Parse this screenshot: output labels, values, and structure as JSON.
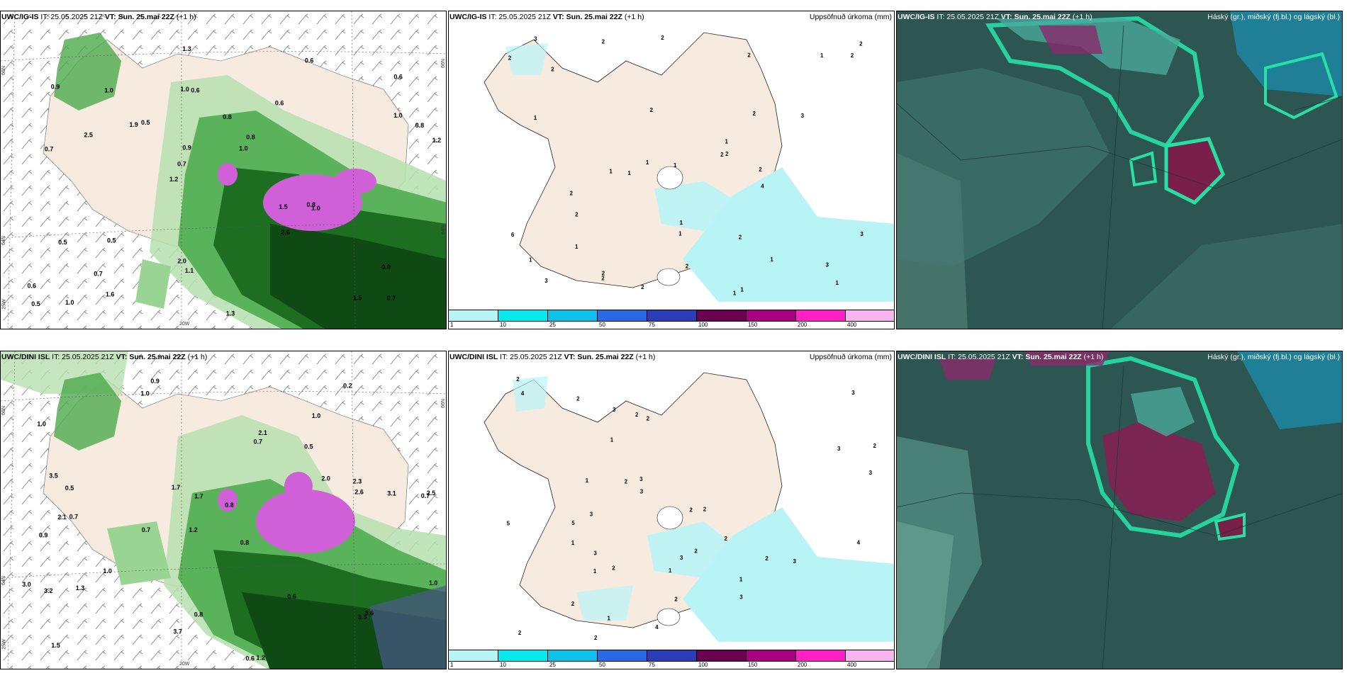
{
  "rows": [
    {
      "wind_title": {
        "model": "UWC/IG-IS",
        "it": "IT: 25.05.2025 21Z",
        "vt_label": "VT:",
        "vt": "Sun. 25.mai 22Z",
        "lead": "(+1 h)"
      },
      "precip_title": {
        "model": "UWC/IG-IS",
        "it": "IT: 25.05.2025 21Z",
        "vt_label": "VT:",
        "vt": "Sun. 25.mai 22Z",
        "lead": "(+1 h)",
        "right": "Uppsöfnuð úrkoma (mm)"
      },
      "cloud_title": {
        "model": "UWC/IG-IS",
        "it": "IT: 25.05.2025 21Z",
        "vt_label": "VT:",
        "vt": "Sun. 25.mai 22Z",
        "lead": "(+1 h)",
        "right": "Háský (gr.), miðský (fj.bl.) og lágský (bl.)"
      },
      "wind_values": [
        "0.7",
        "0.7",
        "0.6",
        "1.2",
        "0.6",
        "1.0",
        "1.0",
        "0.8",
        "0.5",
        "0.5",
        "0.6",
        "0.7",
        "0.6",
        "0.8",
        "1.0",
        "0.9",
        "1.3",
        "1.2",
        "1.5",
        "1.0",
        "0.7",
        "2.0",
        "0.9",
        "1.0",
        "0.6",
        "0.5",
        "1.5",
        "0.9",
        "0.8",
        "1.3",
        "1.9",
        "2.5",
        "2.6",
        "1.6",
        "0.8",
        "1.0",
        "0.5",
        "1.1"
      ],
      "precip_values": [
        "2",
        "1",
        "2",
        "1",
        "2",
        "2",
        "1",
        "1",
        "2",
        "2",
        "1",
        "2",
        "1",
        "1",
        "2",
        "2",
        "1",
        "2",
        "1",
        "2",
        "2",
        "2",
        "1",
        "3",
        "3",
        "2",
        "6",
        "2",
        "3",
        "4",
        "1",
        "1",
        "1",
        "2",
        "1",
        "2",
        "3",
        "1",
        "2",
        "3",
        "2"
      ]
    },
    {
      "wind_title": {
        "model": "UWC/DINI ISL",
        "it": "IT: 25.05.2025 21Z",
        "vt_label": "VT:",
        "vt": "Sun. 25.mai 22Z",
        "lead": "(+1 h)"
      },
      "precip_title": {
        "model": "UWC/DINI ISL",
        "it": "IT: 25.05.2025 21Z",
        "vt_label": "VT:",
        "vt": "Sun. 25.mai 22Z",
        "lead": "(+1 h)",
        "right": "Uppsöfnuð úrkoma (mm)"
      },
      "cloud_title": {
        "model": "UWC/DINI ISL",
        "it": "IT: 25.05.2025 21Z",
        "vt_label": "VT:",
        "vt": "Sun. 25.mai 22Z",
        "lead": "(+1 h)",
        "right": "Háský (gr.), miðský (fj.bl.) og lágský (bl.)"
      },
      "wind_values": [
        "0.9",
        "1.0",
        "0.7",
        "1.2",
        "0.8",
        "0.7",
        "1.0",
        "0.5",
        "0.9",
        "0.7",
        "0.8",
        "1.5",
        "1.0",
        "0.7",
        "0.6",
        "1.2",
        "0.8",
        "0.2",
        "2.0",
        "1.0",
        "0.5",
        "2.1",
        "2.5",
        "3.1",
        "3.0",
        "3.5",
        "1.7",
        "2.6",
        "3.6",
        "3.2",
        "3.3",
        "2.1",
        "1.3",
        "1.7",
        "0.6",
        "1.0",
        "2.3",
        "3.7"
      ],
      "precip_values": [
        "4",
        "2",
        "5",
        "3",
        "2",
        "1",
        "2",
        "2",
        "2",
        "2",
        "1",
        "2",
        "2",
        "1",
        "3",
        "2",
        "1",
        "2",
        "1",
        "3",
        "3",
        "2",
        "1",
        "3",
        "5",
        "2",
        "3",
        "3",
        "4",
        "2",
        "2",
        "3",
        "3",
        "4",
        "2",
        "1",
        "2",
        "3",
        "3"
      ]
    }
  ],
  "axis_labels": {
    "lat66": "66N",
    "lat64": "64N",
    "lon25": "25W",
    "lon20": "20W",
    "lat66r": "66N",
    "lat64r": "64N"
  },
  "colorbar": {
    "colors": [
      "#b8f4f6",
      "#08e8ee",
      "#10c0e8",
      "#2a68e6",
      "#2a3cb8",
      "#6c0050",
      "#a80080",
      "#ff20c8",
      "#f6b4f0"
    ],
    "labels": [
      "1",
      "10",
      "25",
      "50",
      "75",
      "100",
      "150",
      "200",
      "400"
    ]
  },
  "colors": {
    "land": "#f7ebe0",
    "ocean_dark": "#2d5552",
    "green_dark": "#0f4a14",
    "magenta": "#d060d8"
  }
}
